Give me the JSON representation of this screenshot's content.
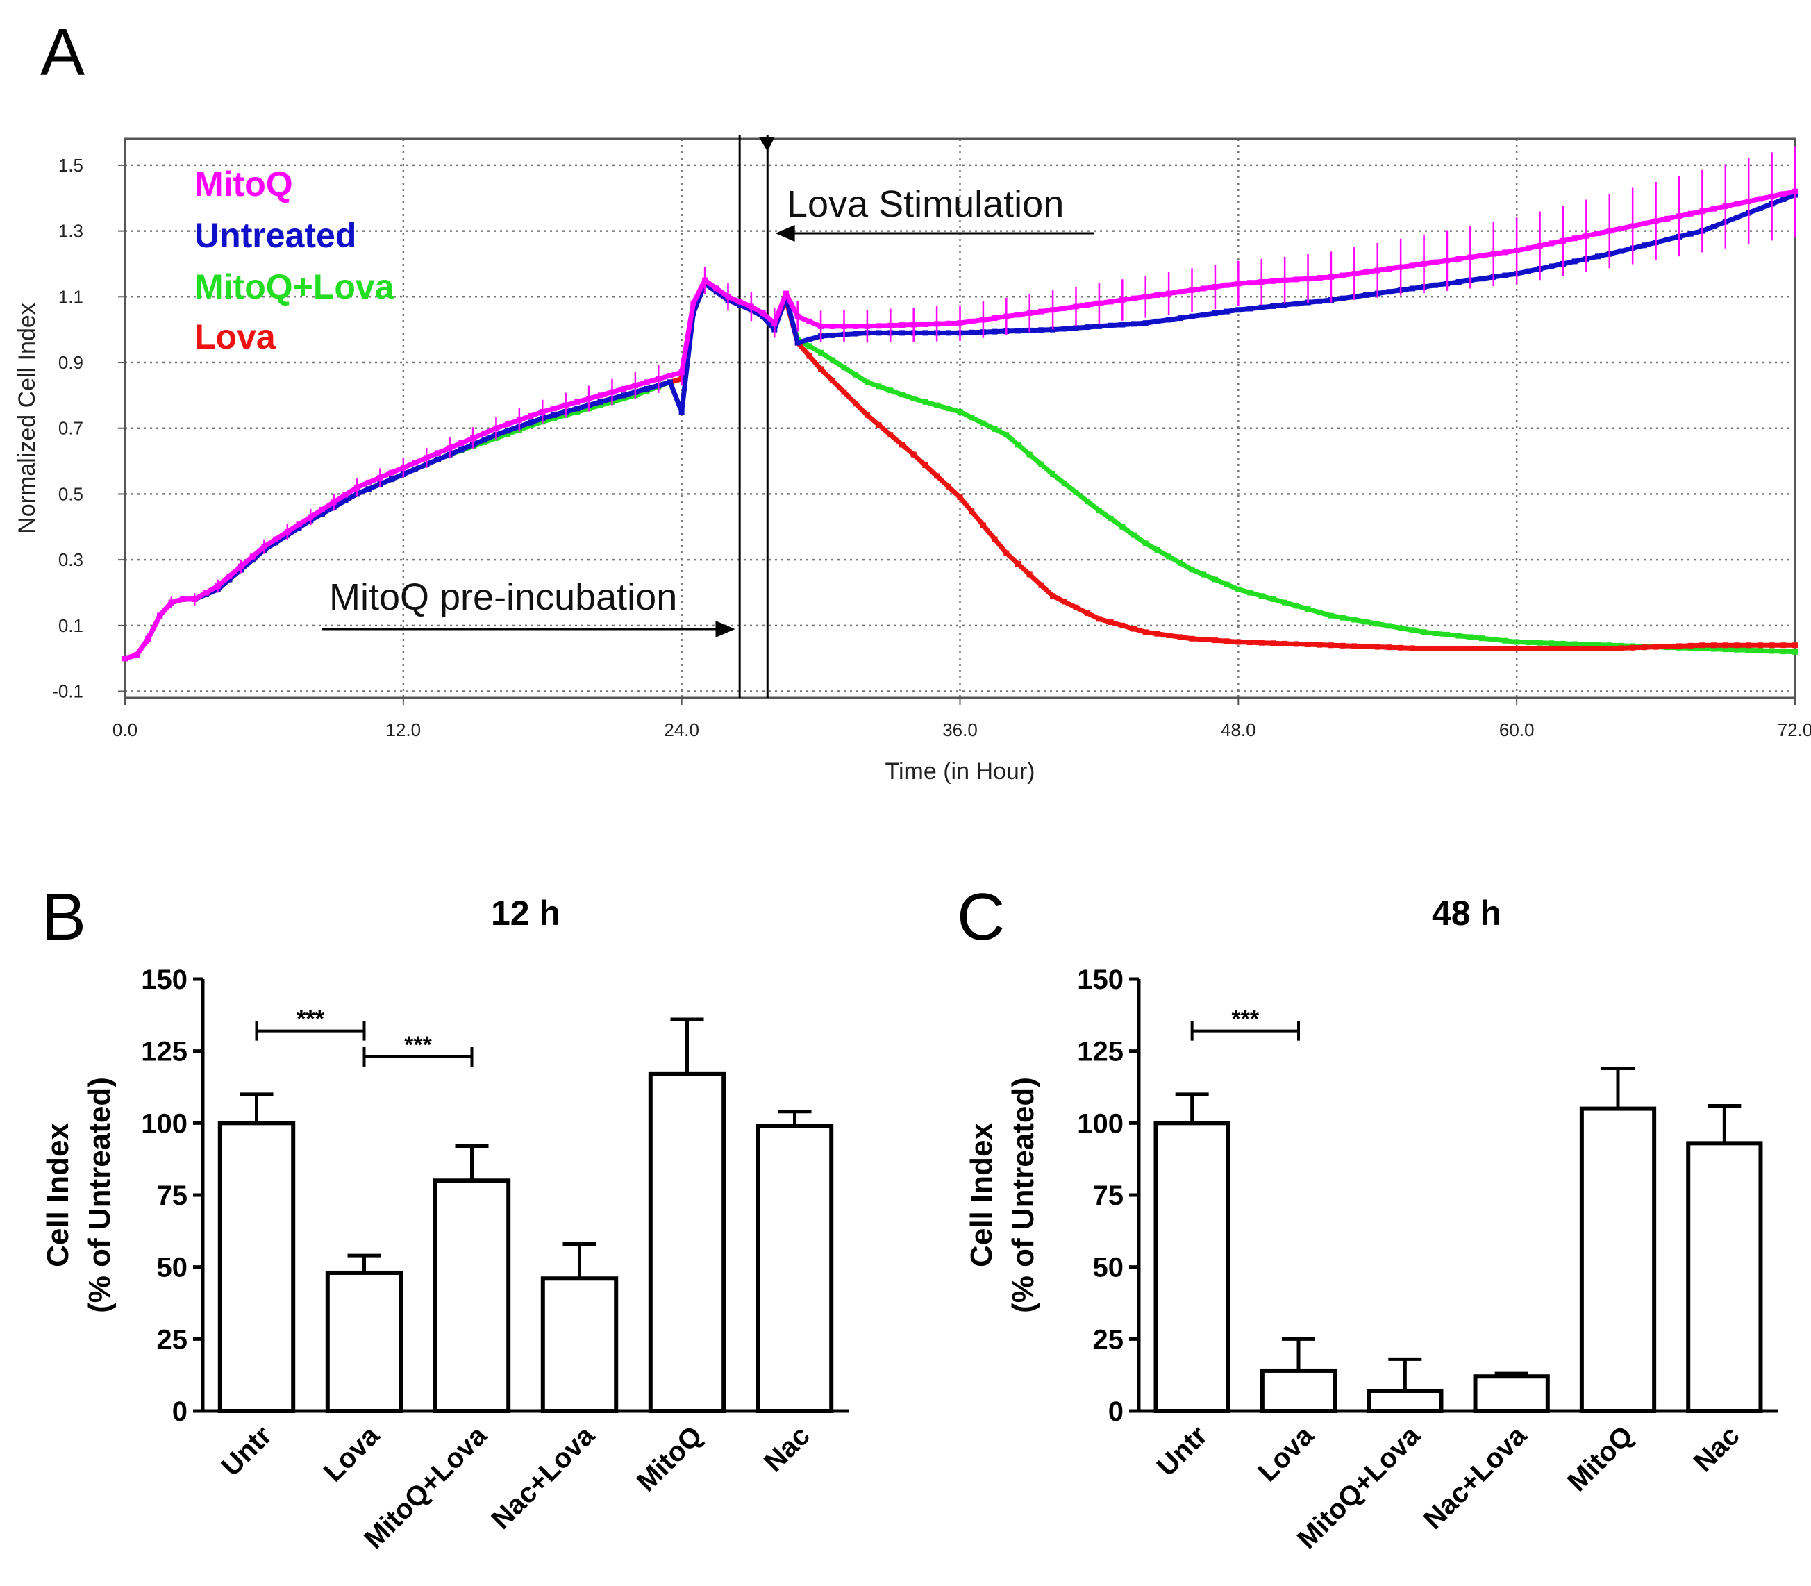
{
  "figure": {
    "panel_labels": [
      "A",
      "B",
      "C"
    ]
  },
  "chart_data": [
    {
      "panel": "A",
      "type": "line",
      "title": "",
      "xlabel": "Time (in Hour)",
      "ylabel": "Normalized Cell Index",
      "xlim": [
        0,
        72
      ],
      "ylim": [
        -0.12,
        1.58
      ],
      "xticks": [
        0,
        12,
        24,
        36,
        48,
        60,
        72
      ],
      "xtick_labels": [
        "0.0",
        "12.0",
        "24.0",
        "36.0",
        "48.0",
        "60.0",
        "72.0"
      ],
      "yticks": [
        -0.1,
        0.1,
        0.3,
        0.5,
        0.7,
        0.9,
        1.1,
        1.3,
        1.5
      ],
      "ytick_labels": [
        "-0.1",
        "0.1",
        "0.3",
        "0.5",
        "0.7",
        "0.9",
        "1.1",
        "1.3",
        "1.5"
      ],
      "grid": true,
      "legend_position": "top-left",
      "series": [
        {
          "name": "MitoQ",
          "color": "#ff00ff",
          "x": [
            0,
            0.5,
            1,
            1.5,
            2,
            2.5,
            3,
            4,
            5,
            6,
            8,
            10,
            12,
            14,
            16,
            18,
            20,
            22,
            23.5,
            24,
            24.5,
            25,
            26,
            27,
            27.5,
            28,
            28.5,
            29,
            30,
            32,
            36,
            40,
            44,
            48,
            52,
            56,
            60,
            64,
            68,
            72
          ],
          "y": [
            0.0,
            0.01,
            0.06,
            0.13,
            0.17,
            0.18,
            0.18,
            0.22,
            0.28,
            0.34,
            0.43,
            0.52,
            0.58,
            0.64,
            0.7,
            0.75,
            0.79,
            0.83,
            0.86,
            0.87,
            1.08,
            1.15,
            1.1,
            1.07,
            1.05,
            1.02,
            1.11,
            1.04,
            1.01,
            1.01,
            1.02,
            1.06,
            1.1,
            1.14,
            1.16,
            1.2,
            1.24,
            1.3,
            1.36,
            1.42
          ],
          "error_bar_every_point": true
        },
        {
          "name": "Untreated",
          "color": "#1010c8",
          "x": [
            0,
            0.5,
            1,
            1.5,
            2,
            2.5,
            3,
            4,
            5,
            6,
            8,
            10,
            12,
            14,
            16,
            18,
            20,
            22,
            23.5,
            24,
            24.5,
            25,
            26,
            27,
            27.5,
            28,
            28.5,
            29,
            30,
            32,
            36,
            40,
            44,
            48,
            52,
            56,
            60,
            64,
            68,
            72
          ],
          "y": [
            0.0,
            0.01,
            0.06,
            0.13,
            0.17,
            0.18,
            0.18,
            0.21,
            0.27,
            0.33,
            0.42,
            0.5,
            0.56,
            0.62,
            0.68,
            0.73,
            0.77,
            0.81,
            0.84,
            0.75,
            1.05,
            1.14,
            1.09,
            1.06,
            1.04,
            1.0,
            1.1,
            0.96,
            0.98,
            0.99,
            0.99,
            1.0,
            1.02,
            1.06,
            1.09,
            1.13,
            1.17,
            1.23,
            1.3,
            1.41
          ]
        },
        {
          "name": "MitoQ+Lova",
          "color": "#22dd22",
          "x": [
            0,
            0.5,
            1,
            1.5,
            2,
            2.5,
            3,
            4,
            5,
            6,
            8,
            10,
            12,
            14,
            16,
            18,
            20,
            22,
            23.5,
            24,
            24.5,
            25,
            26,
            27,
            27.5,
            28,
            28.5,
            29,
            30,
            32,
            34,
            36,
            38,
            40,
            42,
            44,
            46,
            48,
            52,
            56,
            60,
            64,
            68,
            72
          ],
          "y": [
            0.0,
            0.01,
            0.06,
            0.13,
            0.17,
            0.18,
            0.18,
            0.21,
            0.27,
            0.33,
            0.42,
            0.5,
            0.56,
            0.62,
            0.67,
            0.72,
            0.76,
            0.8,
            0.84,
            0.85,
            1.05,
            1.14,
            1.09,
            1.06,
            1.04,
            1.01,
            1.09,
            0.97,
            0.93,
            0.84,
            0.79,
            0.75,
            0.68,
            0.56,
            0.45,
            0.35,
            0.27,
            0.21,
            0.13,
            0.08,
            0.05,
            0.04,
            0.03,
            0.02
          ]
        },
        {
          "name": "Lova",
          "color": "#ee1111",
          "x": [
            0,
            0.5,
            1,
            1.5,
            2,
            2.5,
            3,
            4,
            5,
            6,
            8,
            10,
            12,
            14,
            16,
            18,
            20,
            22,
            23.5,
            24,
            24.5,
            25,
            26,
            27,
            27.5,
            28,
            28.5,
            29,
            30,
            32,
            34,
            36,
            38,
            40,
            42,
            44,
            46,
            48,
            52,
            56,
            60,
            64,
            68,
            72
          ],
          "y": [
            0.0,
            0.01,
            0.06,
            0.13,
            0.17,
            0.18,
            0.18,
            0.21,
            0.27,
            0.33,
            0.42,
            0.5,
            0.56,
            0.62,
            0.68,
            0.73,
            0.77,
            0.81,
            0.84,
            0.85,
            1.05,
            1.14,
            1.09,
            1.06,
            1.04,
            1.01,
            1.09,
            0.96,
            0.88,
            0.74,
            0.62,
            0.49,
            0.32,
            0.19,
            0.12,
            0.08,
            0.06,
            0.05,
            0.04,
            0.03,
            0.03,
            0.03,
            0.04,
            0.04
          ]
        }
      ],
      "vertical_markers": [
        26.5,
        27.7
      ],
      "annotations": [
        {
          "text": "Lova Stimulation",
          "arrow_points_to_x": 27.8
        },
        {
          "text": "MitoQ pre-incubation",
          "arrow_from_x": 8.5,
          "arrow_to_x": 26.3
        }
      ]
    },
    {
      "panel": "B",
      "type": "bar",
      "title": "12 h",
      "xlabel": "",
      "ylabel_lines": [
        "Cell Index",
        "(% of Untreated)"
      ],
      "ylim": [
        0,
        150
      ],
      "yticks": [
        0,
        25,
        50,
        75,
        100,
        125,
        150
      ],
      "ytick_labels": [
        "0",
        "25",
        "50",
        "75",
        "100",
        "125",
        "150"
      ],
      "categories": [
        "Untr",
        "Lova",
        "MitoQ+Lova",
        "Nac+Lova",
        "MitoQ",
        "Nac"
      ],
      "values": [
        100,
        48,
        80,
        46,
        117,
        99
      ],
      "errors": [
        10,
        6,
        12,
        12,
        19,
        5
      ],
      "significance": [
        {
          "from": 0,
          "to": 1,
          "label": "***",
          "y": 132
        },
        {
          "from": 1,
          "to": 2,
          "label": "***",
          "y": 123
        }
      ]
    },
    {
      "panel": "C",
      "type": "bar",
      "title": "48 h",
      "xlabel": "",
      "ylabel_lines": [
        "Cell Index",
        "(% of Untreated)"
      ],
      "ylim": [
        0,
        150
      ],
      "yticks": [
        0,
        25,
        50,
        75,
        100,
        125,
        150
      ],
      "ytick_labels": [
        "0",
        "25",
        "50",
        "75",
        "100",
        "125",
        "150"
      ],
      "categories": [
        "Untr",
        "Lova",
        "MitoQ+Lova",
        "Nac+Lova",
        "MitoQ",
        "Nac"
      ],
      "values": [
        100,
        14,
        7,
        12,
        105,
        93
      ],
      "errors": [
        10,
        11,
        11,
        1,
        14,
        13
      ],
      "significance": [
        {
          "from": 0,
          "to": 1,
          "label": "***",
          "y": 132
        }
      ]
    }
  ]
}
